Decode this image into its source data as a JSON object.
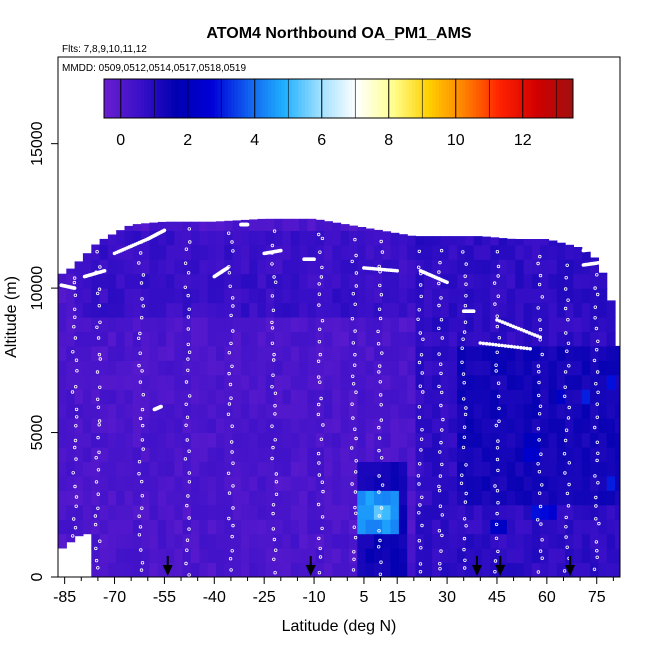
{
  "chart_data": {
    "type": "heatmap",
    "title": "ATOM4 Northbound OA_PM1_AMS",
    "flights_label": "Flts: 7,8,9,10,11,12",
    "dates_label": "MMDD: 0509,0512,0514,0517,0518,0519",
    "xlabel": "Latitude (deg N)",
    "ylabel": "Altitude (m)",
    "xlim": [
      -87,
      82
    ],
    "ylim": [
      0,
      18000
    ],
    "x_ticks": [
      -85,
      -70,
      -55,
      -40,
      -25,
      -10,
      5,
      15,
      30,
      45,
      60,
      75
    ],
    "x_tick_labels": [
      "-85",
      "-70",
      "-55",
      "-40",
      "-25",
      "-10",
      "5",
      "15",
      "30",
      "45",
      "60",
      "75"
    ],
    "y_ticks": [
      0,
      5000,
      10000,
      15000
    ],
    "y_tick_labels": [
      "0",
      "5000",
      "10000",
      "15000"
    ],
    "colorbar": {
      "range": [
        -0.5,
        13.5
      ],
      "ticks": [
        0,
        2,
        4,
        6,
        8,
        10,
        12
      ],
      "tick_labels": [
        "0",
        "2",
        "4",
        "6",
        "8",
        "10",
        "12"
      ],
      "colors": [
        "#6a1fd0",
        "#3a10c8",
        "#0000b0",
        "#0000d8",
        "#1060f0",
        "#20b0ff",
        "#a0e0ff",
        "#ffffff",
        "#ffff90",
        "#ffd000",
        "#ff8000",
        "#ff2000",
        "#d00000",
        "#a01010"
      ]
    },
    "background_value": 0.2,
    "altitude_envelope": [
      [
        -87,
        10500
      ],
      [
        -85,
        10500
      ],
      [
        -80,
        11000
      ],
      [
        -75,
        11600
      ],
      [
        -65,
        12200
      ],
      [
        -55,
        12300
      ],
      [
        -40,
        12300
      ],
      [
        -25,
        12400
      ],
      [
        -10,
        12400
      ],
      [
        0,
        12200
      ],
      [
        10,
        12000
      ],
      [
        20,
        11800
      ],
      [
        30,
        11800
      ],
      [
        40,
        11800
      ],
      [
        50,
        11700
      ],
      [
        60,
        11700
      ],
      [
        70,
        11400
      ],
      [
        75,
        11000
      ],
      [
        78,
        10200
      ],
      [
        80,
        9200
      ],
      [
        81,
        8000
      ]
    ],
    "bottom_cutoff": [
      [
        -87,
        900
      ],
      [
        -80,
        1500
      ],
      [
        -78,
        1500
      ],
      [
        -76,
        0
      ],
      [
        81,
        0
      ]
    ],
    "zones": [
      {
        "lat_range": [
          -87,
          20
        ],
        "alt_range": [
          0,
          12400
        ],
        "value": 0.2
      },
      {
        "lat_range": [
          -82,
          20
        ],
        "alt_range": [
          9000,
          11800
        ],
        "value": 0.6
      },
      {
        "lat_range": [
          20,
          82
        ],
        "alt_range": [
          0,
          11800
        ],
        "value": 0.8
      },
      {
        "lat_range": [
          32,
          82
        ],
        "alt_range": [
          2500,
          8000
        ],
        "value": 1.3
      },
      {
        "lat_range": [
          2,
          18
        ],
        "alt_range": [
          0,
          4200
        ],
        "value": 1.4
      },
      {
        "lat_range": [
          4,
          16
        ],
        "alt_range": [
          1500,
          3000
        ],
        "value": 4.5
      },
      {
        "lat_range": [
          7,
          13
        ],
        "alt_range": [
          1800,
          2700
        ],
        "value": 5.2
      },
      {
        "lat_range": [
          42,
          48
        ],
        "alt_range": [
          1300,
          2000
        ],
        "value": 2.4
      },
      {
        "lat_range": [
          56,
          63
        ],
        "alt_range": [
          1900,
          2600
        ],
        "value": 2.7
      },
      {
        "lat_range": [
          70,
          74
        ],
        "alt_range": [
          5800,
          6500
        ],
        "value": 2.9
      },
      {
        "lat_range": [
          78,
          81
        ],
        "alt_range": [
          6500,
          7200
        ],
        "value": 2.9
      },
      {
        "lat_range": [
          78,
          81
        ],
        "alt_range": [
          3000,
          3600
        ],
        "value": 2.8
      },
      {
        "lat_range": [
          62,
          66
        ],
        "alt_range": [
          5800,
          6400
        ],
        "value": 2.5
      },
      {
        "lat_range": [
          52,
          58
        ],
        "alt_range": [
          4200,
          4800
        ],
        "value": 2.2
      }
    ],
    "flight_track_segments": [
      {
        "lat": [
          -86,
          -82
        ],
        "alt": [
          10100,
          10000
        ]
      },
      {
        "lat": [
          -79,
          -73
        ],
        "alt": [
          10400,
          10600
        ]
      },
      {
        "lat": [
          -70,
          -60
        ],
        "alt": [
          11200,
          11700
        ]
      },
      {
        "lat": [
          -60,
          -55
        ],
        "alt": [
          11700,
          12000
        ]
      },
      {
        "lat": [
          -40,
          -36
        ],
        "alt": [
          10400,
          10700
        ]
      },
      {
        "lat": [
          -25,
          -20
        ],
        "alt": [
          11200,
          11300
        ]
      },
      {
        "lat": [
          -13,
          -10
        ],
        "alt": [
          11000,
          11000
        ]
      },
      {
        "lat": [
          5,
          15
        ],
        "alt": [
          10700,
          10600
        ]
      },
      {
        "lat": [
          22,
          30
        ],
        "alt": [
          10600,
          10200
        ]
      },
      {
        "lat": [
          35,
          38
        ],
        "alt": [
          9200,
          9200
        ]
      },
      {
        "lat": [
          45,
          58
        ],
        "alt": [
          8900,
          8300
        ]
      },
      {
        "lat": [
          40,
          55
        ],
        "alt": [
          8100,
          7900
        ]
      },
      {
        "lat": [
          71,
          78
        ],
        "alt": [
          11300,
          11400
        ]
      },
      {
        "lat": [
          71,
          77
        ],
        "alt": [
          10800,
          10900
        ]
      },
      {
        "lat": [
          -58,
          -56
        ],
        "alt": [
          5800,
          5900
        ]
      },
      {
        "lat": [
          -32,
          -30
        ],
        "alt": [
          12200,
          12200
        ]
      }
    ],
    "vertical_profiles_lat": [
      -82,
      -75,
      -62,
      -48,
      -35,
      -22,
      -8,
      2,
      10,
      22,
      28,
      35,
      45,
      58,
      66,
      75
    ],
    "arrows_lat": [
      -54,
      -11,
      39,
      46,
      67
    ]
  }
}
